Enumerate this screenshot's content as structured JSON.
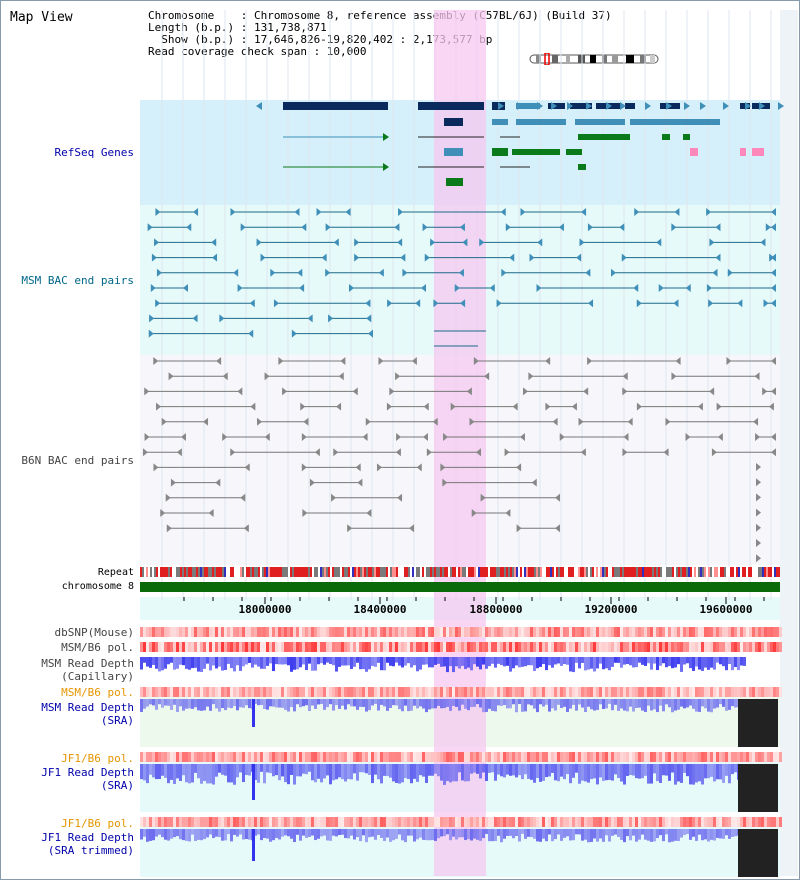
{
  "title": "Map View",
  "info": {
    "line1": "Chromosome    : Chromosome 8, reference assembly (C57BL/6J) (Build 37)",
    "line2": "Length (b.p.) : 131,738,871",
    "line3": "  Show (b.p.) : 17,646,826-19,820,402 : 2,173,577 bp",
    "line4": "Read coverage check span : 10,000"
  },
  "tracks": {
    "refseq": "RefSeq Genes",
    "msm_bac": "MSM BAC end pairs",
    "b6n_bac": "B6N BAC end pairs",
    "repeat": "Repeat",
    "chromosome": "chromosome 8",
    "dbsnp": "dbSNP(Mouse)",
    "msm_b6_pol_1": "MSM/B6 pol.",
    "msm_depth_cap_1": "MSM Read Depth",
    "msm_depth_cap_2": "(Capillary)",
    "msm_b6_pol_2": "MSM/B6 pol.",
    "msm_depth_sra_1": "MSM Read Depth",
    "msm_depth_sra_2": "(SRA)",
    "jf1_pol_1": "JF1/B6 pol.",
    "jf1_depth_sra_1": "JF1 Read Depth",
    "jf1_depth_sra_2": "(SRA)",
    "jf1_pol_2": "JF1/B6 pol.",
    "jf1_depth_trim_1": "JF1 Read Depth",
    "jf1_depth_trim_2": "(SRA trimmed)"
  },
  "axis": {
    "ticks": [
      "18000000",
      "18400000",
      "18800000",
      "19200000",
      "19600000"
    ]
  },
  "colors": {
    "label_blue": "#0000aa",
    "label_teal": "#006688",
    "label_gray": "#444444",
    "label_orange": "#e69500",
    "highlight": "#f5c8f0",
    "refseq_bg": "#d5f0fa",
    "bac_bg": "#e6fafa",
    "gene_dark": "#0a2a5e",
    "gene_mid": "#3f8fb8",
    "gene_green": "#0a7a1a",
    "depth_blue": "#3333ee",
    "chrom_green": "#0a6a0a"
  }
}
